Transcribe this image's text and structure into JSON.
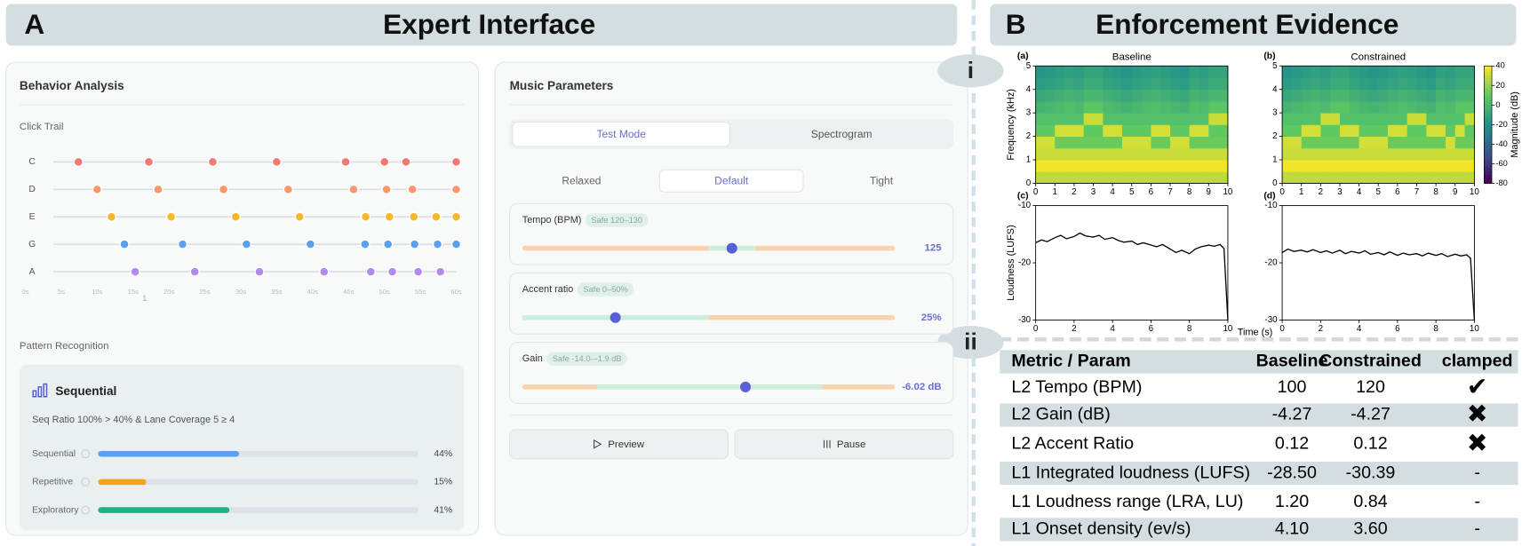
{
  "panel_a": {
    "label": "A",
    "title": "Expert Interface",
    "behavior_analysis": {
      "title": "Behavior Analysis",
      "click_trail": {
        "title": "Click Trail",
        "xlim": [
          0,
          60
        ],
        "xticks": [
          {
            "value": 0,
            "label": "0s"
          },
          {
            "value": 5,
            "label": "5s"
          },
          {
            "value": 10,
            "label": "10s"
          },
          {
            "value": 15,
            "label": "15s"
          },
          {
            "value": 20,
            "label": "20s"
          },
          {
            "value": 25,
            "label": "25s"
          },
          {
            "value": 30,
            "label": "30s"
          },
          {
            "value": 35,
            "label": "35s"
          },
          {
            "value": 40,
            "label": "40s"
          },
          {
            "value": 45,
            "label": "45s"
          },
          {
            "value": 50,
            "label": "50s"
          },
          {
            "value": 55,
            "label": "55s"
          },
          {
            "value": 60,
            "label": "60s"
          }
        ],
        "marker_label": "1",
        "lanes": [
          {
            "name": "C",
            "color": "#ee7a73",
            "clicks": [
              7.4,
              17.2,
              26.1,
              35.0,
              44.6,
              50.0,
              53.0,
              60.0
            ]
          },
          {
            "name": "D",
            "color": "#f7996b",
            "clicks": [
              10.0,
              18.5,
              27.6,
              36.6,
              45.7,
              50.3,
              53.9,
              60.0
            ]
          },
          {
            "name": "E",
            "color": "#f4b82e",
            "clicks": [
              12.0,
              20.3,
              29.3,
              38.2,
              47.4,
              50.7,
              54.1,
              57.2,
              60.0
            ]
          },
          {
            "name": "G",
            "color": "#5b9ff0",
            "clicks": [
              13.8,
              21.9,
              30.8,
              39.7,
              47.3,
              50.5,
              54.2,
              57.4,
              60.0
            ]
          },
          {
            "name": "A",
            "color": "#b18af0",
            "clicks": [
              15.3,
              23.6,
              32.6,
              41.6,
              48.1,
              51.1,
              54.7,
              57.8
            ]
          }
        ]
      }
    },
    "pattern_recognition": {
      "title": "Pattern Recognition",
      "pattern": "Sequential",
      "description": "Seq Ratio 100% > 40% & Lane Coverage 5 ≥ 4",
      "xlim": [
        0,
        100
      ],
      "bars": [
        {
          "name": "Sequential",
          "value": 44,
          "value_label": "44%",
          "color": "#5b9ff0"
        },
        {
          "name": "Repetitive",
          "value": 15,
          "value_label": "15%",
          "color": "#f5a21d"
        },
        {
          "name": "Exploratory",
          "value": 41,
          "value_label": "41%",
          "color": "#1db382"
        }
      ]
    },
    "music_parameters": {
      "title": "Music Parameters",
      "tabs": [
        "Test Mode",
        "Spectrogram"
      ],
      "active_tab": 0,
      "modes": [
        "Relaxed",
        "Default",
        "Tight"
      ],
      "active_mode": 1,
      "sliders": [
        {
          "name": "Tempo (BPM)",
          "safe_label": "Safe 120–130",
          "safe": [
            120,
            130
          ],
          "range": [
            80,
            160
          ],
          "value": 125,
          "value_label": "125"
        },
        {
          "name": "Accent ratio",
          "safe_label": "Safe 0–50%",
          "safe": [
            0,
            50
          ],
          "range": [
            0,
            100
          ],
          "value": 25,
          "value_label": "25%"
        },
        {
          "name": "Gain",
          "safe_label": "Safe -14.0–-1.9 dB",
          "safe": [
            -14.0,
            -1.9
          ],
          "range": [
            -18,
            2
          ],
          "value": -6.02,
          "value_label": "-6.02 dB"
        }
      ],
      "buttons": [
        "Preview",
        "Pause"
      ]
    }
  },
  "panel_b": {
    "label": "B",
    "title": "Enforcement Evidence",
    "section_labels": [
      "i",
      "ii"
    ],
    "colorbar": {
      "label": "Magnitude (dB)",
      "lim": [
        -80,
        40
      ],
      "ticks": [
        40,
        20,
        0,
        -20,
        -40,
        -60,
        -80
      ]
    },
    "charts": [
      {
        "type": "heatmap",
        "panel": "(a)",
        "title": "Baseline",
        "ylabel": "Frequency (kHz)",
        "xlim": [
          0,
          10
        ],
        "ylim": [
          0,
          5
        ],
        "xticks": [
          0,
          1,
          2,
          3,
          4,
          5,
          6,
          7,
          8,
          9,
          10
        ],
        "yticks": [
          0,
          1,
          2,
          3,
          4,
          5
        ],
        "clim": [
          -80,
          40
        ],
        "matrix": [
          [
            28,
            28,
            28,
            28,
            28,
            28,
            28,
            28,
            28,
            28,
            28,
            28,
            28,
            28,
            28,
            28,
            28,
            28,
            28,
            28
          ],
          [
            38,
            38,
            38,
            38,
            38,
            38,
            38,
            38,
            38,
            38,
            38,
            38,
            38,
            38,
            38,
            38,
            38,
            38,
            38,
            38
          ],
          [
            30,
            30,
            30,
            30,
            30,
            30,
            30,
            30,
            30,
            30,
            30,
            30,
            30,
            30,
            30,
            30,
            30,
            30,
            30,
            30
          ],
          [
            32,
            32,
            12,
            12,
            12,
            12,
            12,
            12,
            12,
            32,
            32,
            32,
            12,
            12,
            32,
            32,
            12,
            12,
            12,
            12
          ],
          [
            10,
            10,
            32,
            32,
            32,
            10,
            10,
            32,
            32,
            10,
            10,
            10,
            32,
            32,
            10,
            10,
            32,
            32,
            10,
            10
          ],
          [
            5,
            5,
            5,
            5,
            5,
            30,
            30,
            5,
            5,
            5,
            5,
            5,
            5,
            5,
            5,
            5,
            5,
            5,
            30,
            30
          ],
          [
            -2,
            0,
            2,
            4,
            2,
            8,
            8,
            2,
            0,
            -2,
            0,
            2,
            4,
            2,
            0,
            -2,
            4,
            2,
            8,
            8
          ],
          [
            -8,
            -6,
            -4,
            -2,
            -4,
            0,
            0,
            -4,
            -6,
            -8,
            -6,
            -4,
            -2,
            -4,
            -6,
            -8,
            -2,
            -4,
            0,
            0
          ],
          [
            -14,
            -12,
            -10,
            -8,
            -10,
            -6,
            -6,
            -10,
            -12,
            -14,
            -12,
            -10,
            -8,
            -10,
            -12,
            -14,
            -8,
            -10,
            -6,
            -6
          ],
          [
            -18,
            -16,
            -14,
            -12,
            -14,
            -10,
            -10,
            -14,
            -16,
            -18,
            -16,
            -14,
            -12,
            -14,
            -16,
            -18,
            -12,
            -14,
            -10,
            -10
          ]
        ]
      },
      {
        "type": "heatmap",
        "panel": "(b)",
        "title": "Constrained",
        "xlim": [
          0,
          10
        ],
        "ylim": [
          0,
          5
        ],
        "xticks": [
          0,
          1,
          2,
          3,
          4,
          5,
          6,
          7,
          8,
          9,
          10
        ],
        "yticks": [
          0,
          1,
          2,
          3,
          4,
          5
        ],
        "clim": [
          -80,
          40
        ],
        "matrix": [
          [
            28,
            28,
            28,
            28,
            28,
            28,
            28,
            28,
            28,
            28,
            28,
            28,
            28,
            28,
            28,
            28,
            28,
            28,
            28,
            28
          ],
          [
            38,
            38,
            38,
            38,
            38,
            38,
            38,
            38,
            38,
            38,
            38,
            38,
            38,
            38,
            38,
            38,
            38,
            38,
            38,
            38
          ],
          [
            30,
            30,
            30,
            30,
            30,
            30,
            30,
            30,
            30,
            30,
            30,
            30,
            30,
            30,
            30,
            30,
            30,
            30,
            30,
            30
          ],
          [
            32,
            32,
            12,
            12,
            12,
            12,
            12,
            12,
            32,
            32,
            32,
            12,
            12,
            12,
            12,
            12,
            12,
            32,
            12,
            12
          ],
          [
            10,
            10,
            32,
            32,
            10,
            10,
            32,
            32,
            10,
            10,
            10,
            32,
            32,
            10,
            10,
            32,
            32,
            10,
            32,
            10
          ],
          [
            5,
            5,
            5,
            5,
            30,
            30,
            5,
            5,
            5,
            5,
            5,
            5,
            5,
            30,
            30,
            5,
            5,
            5,
            5,
            30
          ],
          [
            -2,
            0,
            2,
            4,
            2,
            8,
            8,
            2,
            0,
            -2,
            0,
            2,
            4,
            2,
            0,
            -2,
            4,
            2,
            8,
            8
          ],
          [
            -8,
            -6,
            -4,
            -2,
            -4,
            0,
            0,
            -4,
            -6,
            -8,
            -6,
            -4,
            -2,
            -4,
            -6,
            -8,
            -2,
            -4,
            0,
            0
          ],
          [
            -14,
            -12,
            -10,
            -8,
            -10,
            -6,
            -6,
            -10,
            -12,
            -14,
            -12,
            -10,
            -8,
            -10,
            -12,
            -14,
            -8,
            -10,
            -6,
            -6
          ],
          [
            -18,
            -16,
            -14,
            -12,
            -14,
            -10,
            -10,
            -14,
            -16,
            -18,
            -16,
            -14,
            -12,
            -14,
            -16,
            -18,
            -12,
            -14,
            -10,
            -10
          ]
        ]
      },
      {
        "type": "line",
        "panel": "(c)",
        "ylabel": "Loudness (LUFS)",
        "xlabel": "Time (s)",
        "color": "#000000",
        "xlim": [
          0,
          10
        ],
        "ylim": [
          -30,
          -10
        ],
        "xticks": [
          0,
          2,
          4,
          6,
          8,
          10
        ],
        "yticks": [
          -30,
          -20,
          -10
        ],
        "x": [
          0,
          0.3,
          0.6,
          1,
          1.3,
          1.6,
          2,
          2.3,
          2.6,
          3,
          3.3,
          3.6,
          4,
          4.3,
          4.6,
          5,
          5.3,
          5.6,
          6,
          6.3,
          6.6,
          7,
          7.3,
          7.6,
          8,
          8.3,
          8.6,
          9,
          9.3,
          9.6,
          9.8,
          10
        ],
        "values": [
          -16.5,
          -16,
          -16.3,
          -15.6,
          -15.2,
          -15.8,
          -15.4,
          -14.8,
          -15.3,
          -15.5,
          -15.2,
          -15.9,
          -15.6,
          -16.1,
          -16.4,
          -16.2,
          -16.8,
          -16.5,
          -16.9,
          -17.2,
          -16.8,
          -17.6,
          -18.2,
          -17.8,
          -18.4,
          -17.6,
          -17.2,
          -16.9,
          -17.1,
          -16.8,
          -17.5,
          -30
        ]
      },
      {
        "type": "line",
        "panel": "(d)",
        "color": "#000000",
        "xlim": [
          0,
          10
        ],
        "ylim": [
          -30,
          -10
        ],
        "xticks": [
          0,
          2,
          4,
          6,
          8,
          10
        ],
        "yticks": [
          -30,
          -20,
          -10
        ],
        "x": [
          0,
          0.3,
          0.6,
          1,
          1.3,
          1.6,
          2,
          2.3,
          2.6,
          3,
          3.3,
          3.6,
          4,
          4.3,
          4.6,
          5,
          5.3,
          5.6,
          6,
          6.3,
          6.6,
          7,
          7.3,
          7.6,
          8,
          8.3,
          8.6,
          9,
          9.3,
          9.6,
          9.8,
          10
        ],
        "values": [
          -18.2,
          -17.6,
          -18.0,
          -17.8,
          -18.1,
          -17.7,
          -18.2,
          -17.9,
          -18.3,
          -17.8,
          -18.4,
          -18.0,
          -18.3,
          -17.9,
          -18.5,
          -18.2,
          -18.6,
          -18.1,
          -18.7,
          -18.3,
          -18.6,
          -18.4,
          -18.8,
          -18.3,
          -18.7,
          -18.4,
          -18.9,
          -18.5,
          -18.8,
          -18.6,
          -19.2,
          -30
        ]
      }
    ],
    "table": {
      "header": [
        "Metric / Param",
        "Baseline",
        "Constrained",
        "clamped"
      ],
      "rows": [
        [
          "L2 Tempo (BPM)",
          "100",
          "120",
          "✔"
        ],
        [
          "L2 Gain (dB)",
          "-4.27",
          "-4.27",
          "✖"
        ],
        [
          "L2 Accent Ratio",
          "0.12",
          "0.12",
          "✖"
        ],
        [
          "L1 Integrated loudness (LUFS)",
          "-28.50",
          "-30.39",
          "-"
        ],
        [
          "L1 Loudness range (LRA, LU)",
          "1.20",
          "0.84",
          "-"
        ],
        [
          "L1 Onset density (ev/s)",
          "4.10",
          "3.60",
          "-"
        ]
      ]
    }
  }
}
